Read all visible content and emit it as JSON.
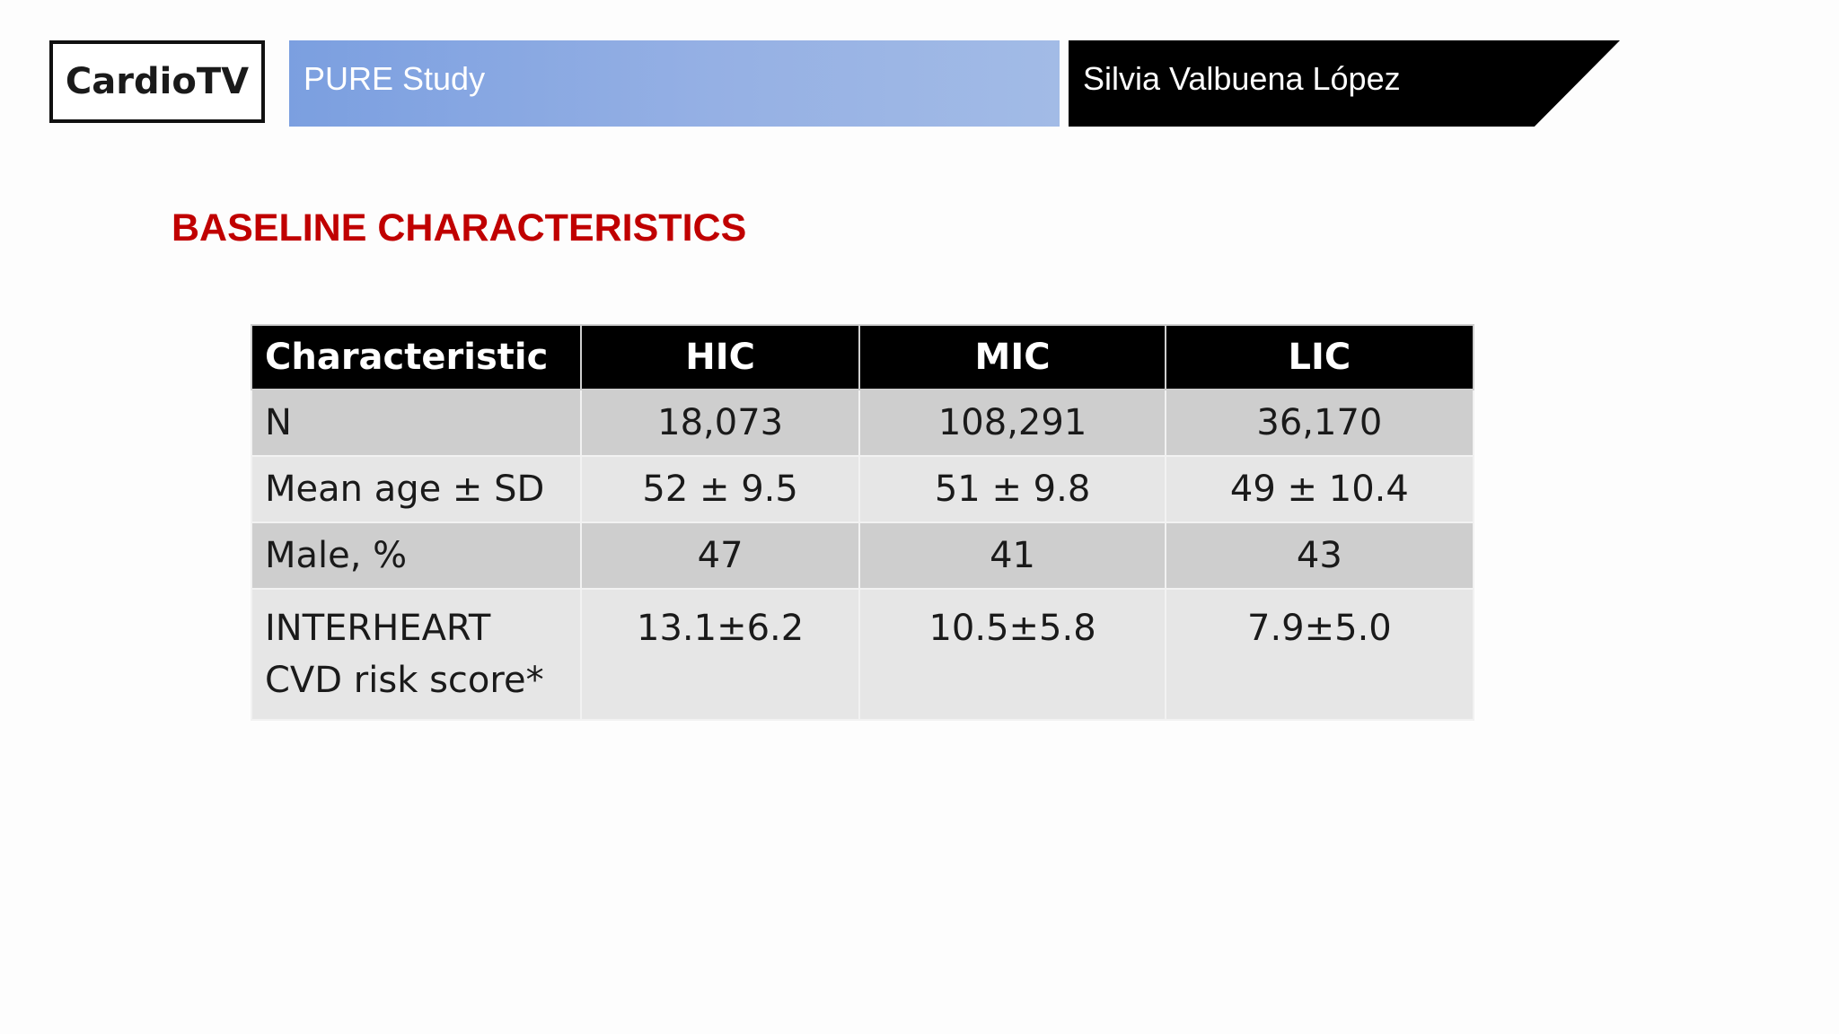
{
  "header": {
    "logo_text": "CardioTV",
    "study_title": "PURE Study",
    "speaker_name": "Silvia Valbuena López",
    "study_bar_color": "#8aa8e3",
    "speaker_bar_color": "#000000"
  },
  "slide": {
    "title": "BASELINE CHARACTERISTICS",
    "title_color": "#c00000"
  },
  "table": {
    "headers": [
      "Characteristic",
      "HIC",
      "MIC",
      "LIC"
    ],
    "rows": [
      {
        "label": "N",
        "values": [
          "18,073",
          "108,291",
          "36,170"
        ]
      },
      {
        "label": "Mean age ± SD",
        "values": [
          "52 ± 9.5",
          "51 ± 9.8",
          "49 ± 10.4"
        ]
      },
      {
        "label": "Male, %",
        "values": [
          "47",
          "41",
          "43"
        ]
      },
      {
        "label_line1": "INTERHEART",
        "label_line2": "CVD risk score*",
        "values": [
          "13.1±6.2",
          "10.5±5.8",
          "7.9±5.0"
        ]
      }
    ]
  }
}
